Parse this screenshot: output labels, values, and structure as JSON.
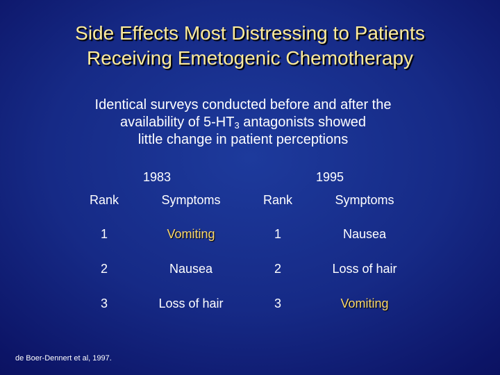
{
  "title": {
    "line1": "Side Effects Most Distressing to Patients",
    "line2": "Receiving Emetogenic Chemotherapy"
  },
  "subtitle": {
    "line1": "Identical surveys conducted before and after the",
    "line2_pre": "availability of 5-HT",
    "line2_sub": "3",
    "line2_post": " antagonists showed",
    "line3": "little change in patient perceptions"
  },
  "table": {
    "years": [
      "1983",
      "1995"
    ],
    "headers": [
      "Rank",
      "Symptoms",
      "Rank",
      "Symptoms"
    ],
    "rows": [
      [
        "1",
        "Vomiting",
        "1",
        "Nausea"
      ],
      [
        "2",
        "Nausea",
        "2",
        "Loss of hair"
      ],
      [
        "3",
        "Loss of hair",
        "3",
        "Vomiting"
      ]
    ]
  },
  "citation": "de Boer-Dennert et al, 1997.",
  "colors": {
    "title": "#fdeb9b",
    "highlight": "#fbd86e",
    "text": "#ffffff"
  }
}
